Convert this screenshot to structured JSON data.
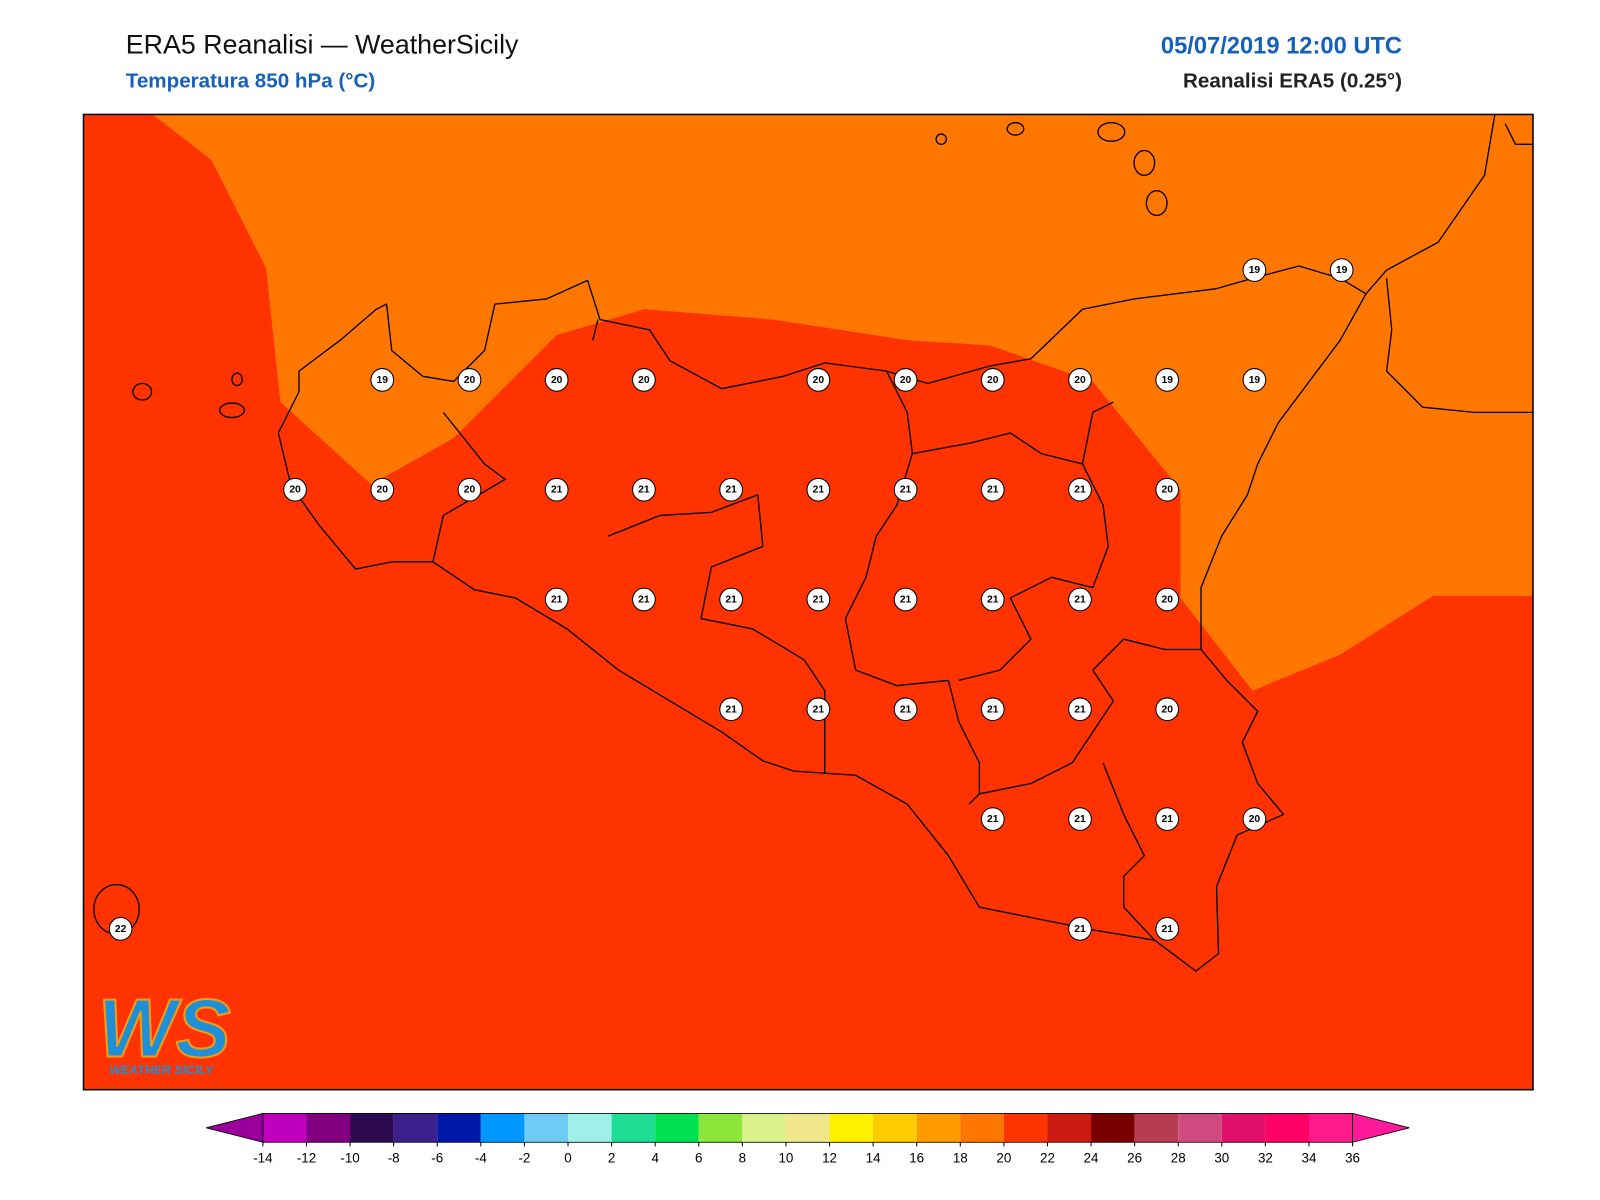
{
  "header": {
    "title": "ERA5 Reanalisi — WeatherSicily",
    "subtitle": "Temperatura 850 hPa (°C)",
    "datetime": "05/07/2019 12:00 UTC",
    "source": "Reanalisi ERA5 (0.25°)"
  },
  "map": {
    "grid": [
      [
        null,
        null,
        null,
        null,
        null,
        null,
        null,
        null,
        null,
        null,
        null,
        null,
        null,
        19,
        19
      ],
      [
        null,
        null,
        null,
        19,
        20,
        20,
        20,
        null,
        20,
        20,
        20,
        20,
        19,
        19,
        null
      ],
      [
        null,
        null,
        20,
        20,
        20,
        21,
        21,
        21,
        21,
        21,
        21,
        21,
        20,
        null,
        null
      ],
      [
        null,
        null,
        null,
        null,
        null,
        21,
        21,
        21,
        21,
        21,
        21,
        21,
        20,
        null,
        null
      ],
      [
        null,
        null,
        null,
        null,
        null,
        null,
        null,
        21,
        21,
        21,
        21,
        21,
        20,
        null,
        null
      ],
      [
        null,
        null,
        null,
        null,
        null,
        null,
        null,
        null,
        null,
        null,
        21,
        21,
        21,
        20,
        null
      ],
      [
        22,
        null,
        null,
        null,
        null,
        null,
        null,
        null,
        null,
        null,
        null,
        21,
        21,
        null,
        null
      ]
    ]
  },
  "logo": {
    "mark": "WS",
    "text": "WEATHER SICILY"
  },
  "colorbar": {
    "ticks": [
      -14,
      -12,
      -10,
      -8,
      -6,
      -4,
      -2,
      0,
      2,
      4,
      6,
      8,
      10,
      12,
      14,
      16,
      18,
      20,
      22,
      24,
      26,
      28,
      30,
      32,
      34,
      36
    ],
    "colors": [
      "#bf00bf",
      "#800080",
      "#2e0a50",
      "#3c208c",
      "#0018a8",
      "#0096ff",
      "#6ecbf5",
      "#9ef0e8",
      "#1ede96",
      "#00e050",
      "#8ce63c",
      "#dcf08c",
      "#f0e68c",
      "#fff000",
      "#ffcc00",
      "#ff9a00",
      "#ff7700",
      "#ff3300",
      "#cc1a10",
      "#7a0000",
      "#b83c50",
      "#d04a80",
      "#e0106a",
      "#ff0066",
      "#ff1a8c"
    ],
    "extend_colors": [
      "#9c009c",
      "#ff1a9a"
    ]
  }
}
